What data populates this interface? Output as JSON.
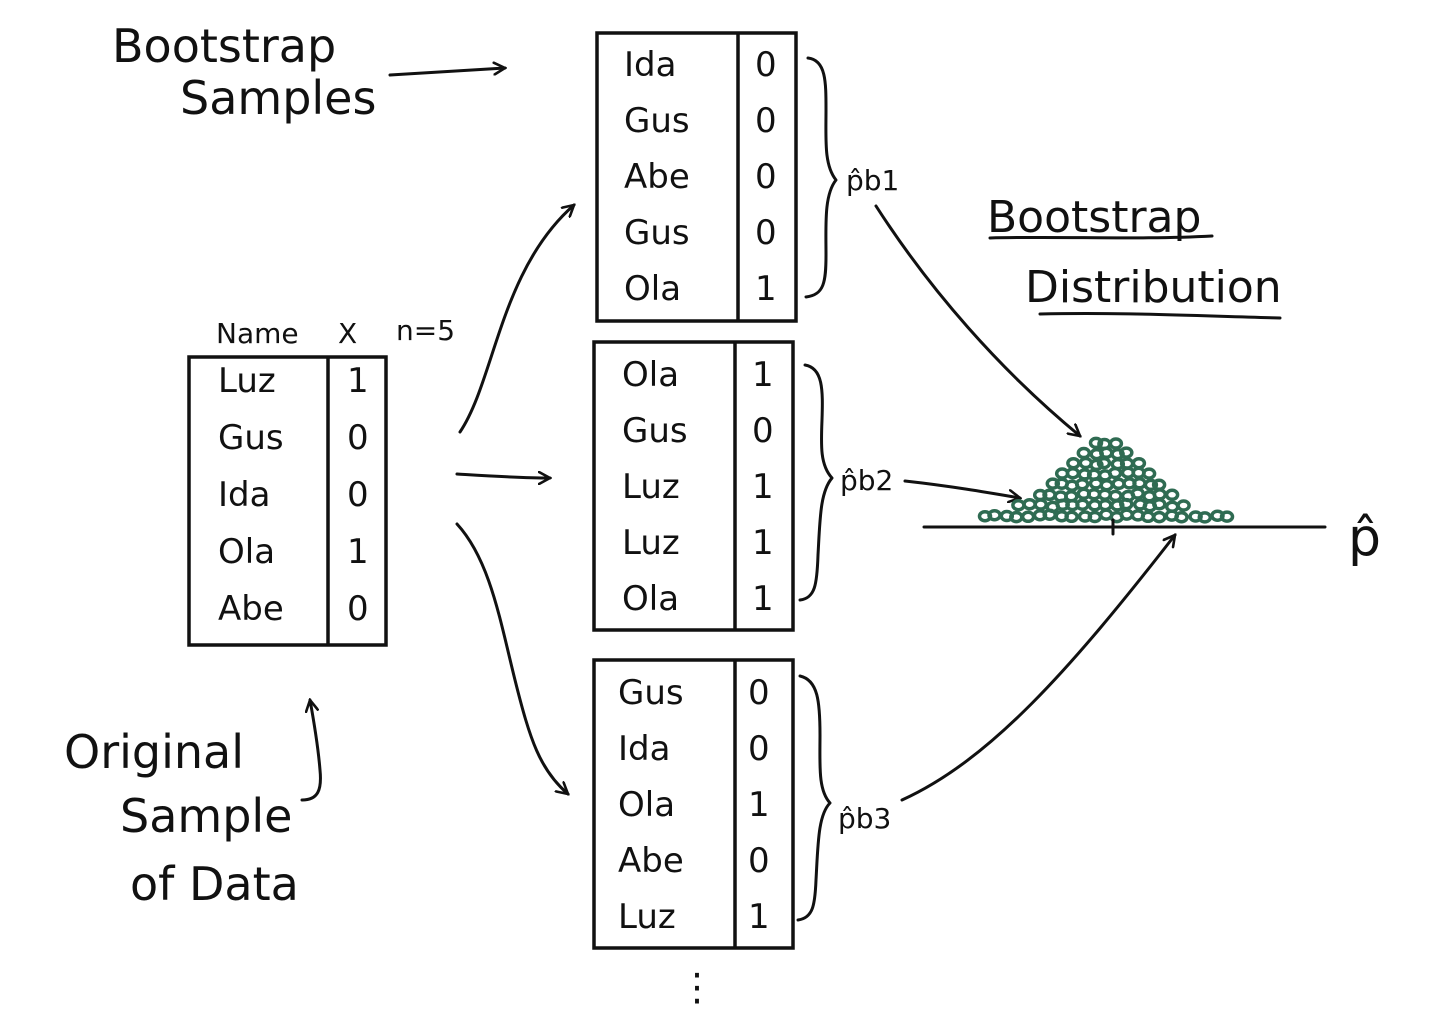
{
  "labels": {
    "bootstrap_samples": [
      "Bootstrap",
      "Samples"
    ],
    "bootstrap_distribution": [
      "Bootstrap",
      "Distribution"
    ],
    "original_sample": [
      "Original",
      "Sample",
      "of Data"
    ],
    "axis_label": "p̂",
    "continuation": "⋮"
  },
  "original": {
    "headers": {
      "name": "Name",
      "x": "X",
      "n": "n=5"
    },
    "rows": [
      {
        "name": "Luz",
        "x": "1"
      },
      {
        "name": "Gus",
        "x": "0"
      },
      {
        "name": "Ida",
        "x": "0"
      },
      {
        "name": "Ola",
        "x": "1"
      },
      {
        "name": "Abe",
        "x": "0"
      }
    ]
  },
  "samples": [
    {
      "stat": "p̂b1",
      "rows": [
        {
          "name": "Ida",
          "x": "0"
        },
        {
          "name": "Gus",
          "x": "0"
        },
        {
          "name": "Abe",
          "x": "0"
        },
        {
          "name": "Gus",
          "x": "0"
        },
        {
          "name": "Ola",
          "x": "1"
        }
      ]
    },
    {
      "stat": "p̂b2",
      "rows": [
        {
          "name": "Ola",
          "x": "1"
        },
        {
          "name": "Gus",
          "x": "0"
        },
        {
          "name": "Luz",
          "x": "1"
        },
        {
          "name": "Luz",
          "x": "1"
        },
        {
          "name": "Ola",
          "x": "1"
        }
      ]
    },
    {
      "stat": "p̂b3",
      "rows": [
        {
          "name": "Gus",
          "x": "0"
        },
        {
          "name": "Ida",
          "x": "0"
        },
        {
          "name": "Ola",
          "x": "1"
        },
        {
          "name": "Abe",
          "x": "0"
        },
        {
          "name": "Luz",
          "x": "1"
        }
      ]
    }
  ],
  "colors": {
    "ink": "#111111",
    "dots": "#2f6b52"
  }
}
